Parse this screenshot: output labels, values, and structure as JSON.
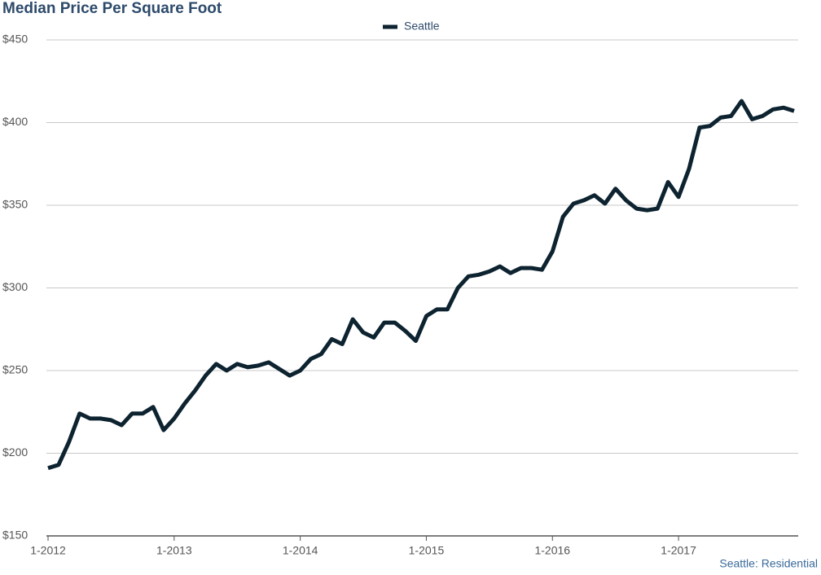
{
  "chart_data": {
    "type": "line",
    "title": "Median Price Per Square Foot",
    "credit": "Seattle: Residential",
    "categories": [
      "1-2012",
      null,
      null,
      null,
      null,
      null,
      null,
      null,
      null,
      null,
      null,
      null,
      "1-2013",
      null,
      null,
      null,
      null,
      null,
      null,
      null,
      null,
      null,
      null,
      null,
      "1-2014",
      null,
      null,
      null,
      null,
      null,
      null,
      null,
      null,
      null,
      null,
      null,
      "1-2015",
      null,
      null,
      null,
      null,
      null,
      null,
      null,
      null,
      null,
      null,
      null,
      "1-2016",
      null,
      null,
      null,
      null,
      null,
      null,
      null,
      null,
      null,
      null,
      null,
      "1-2017",
      null,
      null,
      null,
      null,
      null,
      null,
      null,
      null,
      null,
      null,
      null
    ],
    "series": [
      {
        "name": "Seattle",
        "color": "#0d2330",
        "values": [
          191,
          193,
          207,
          224,
          221,
          221,
          220,
          217,
          224,
          224,
          228,
          214,
          221,
          230,
          238,
          247,
          254,
          250,
          254,
          252,
          253,
          255,
          251,
          247,
          250,
          257,
          260,
          269,
          266,
          281,
          273,
          270,
          279,
          279,
          274,
          268,
          283,
          287,
          287,
          300,
          307,
          308,
          310,
          313,
          309,
          312,
          312,
          311,
          322,
          343,
          351,
          353,
          356,
          351,
          360,
          353,
          348,
          347,
          348,
          364,
          355,
          372,
          397,
          398,
          403,
          404,
          413,
          402,
          404,
          408,
          409,
          407
        ]
      }
    ],
    "ylim": [
      150,
      450
    ],
    "yticks": [
      {
        "value": 150,
        "label": "$150"
      },
      {
        "value": 200,
        "label": "$200"
      },
      {
        "value": 250,
        "label": "$250"
      },
      {
        "value": 300,
        "label": "$300"
      },
      {
        "value": 350,
        "label": "$350"
      },
      {
        "value": 400,
        "label": "$400"
      },
      {
        "value": 450,
        "label": "$450"
      }
    ],
    "grid": true,
    "legend": "top"
  }
}
